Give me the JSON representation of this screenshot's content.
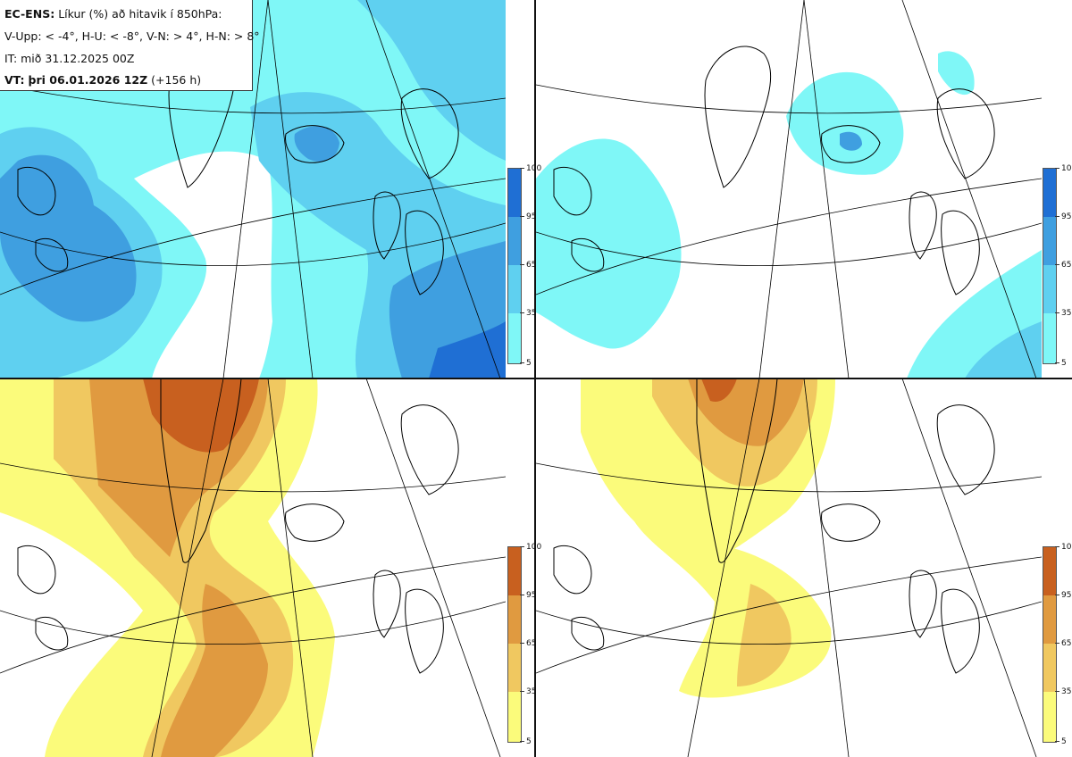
{
  "info": {
    "model": "EC-ENS:",
    "title": "Líkur (%) að hitavik í 850hPa:",
    "thresholds": "V-Upp: < -4°, H-U: < -8°, V-N: > 4°, H-N: > 8°",
    "initial_time": "IT: mið 31.12.2025 00Z",
    "valid_prefix": "VT:",
    "valid_time": "þri 06.01.2026 12Z",
    "lead_time": "(+156 h)"
  },
  "legend": {
    "ticks": [
      "100",
      "95",
      "65",
      "35",
      "5"
    ]
  },
  "colors": {
    "cold": [
      "#7ff7f7",
      "#5fd0f0",
      "#3f9fe0",
      "#1f6fd4"
    ],
    "warm": [
      "#fbfb7b",
      "#f0c860",
      "#e09a40",
      "#c8601f"
    ],
    "coast": "#000000",
    "grid": "#000000"
  },
  "panels": [
    {
      "id": "cold-gt4",
      "scheme": "cold",
      "coverage": "widespread"
    },
    {
      "id": "cold-gt8",
      "scheme": "cold",
      "coverage": "limited"
    },
    {
      "id": "warm-gt4",
      "scheme": "warm",
      "coverage": "widespread"
    },
    {
      "id": "warm-gt8",
      "scheme": "warm",
      "coverage": "limited"
    }
  ]
}
